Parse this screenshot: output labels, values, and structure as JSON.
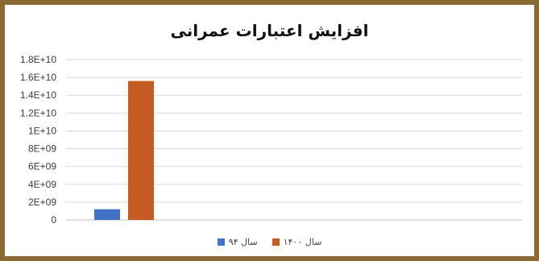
{
  "chart_data": {
    "type": "bar",
    "title": "افزایش اعتبارات عمرانی",
    "xlabel": "",
    "ylabel": "",
    "categories": [
      ""
    ],
    "series": [
      {
        "name": "سال ۹۴",
        "color": "#4472c4",
        "values": [
          1200000000
        ]
      },
      {
        "name": "سال ۱۴۰۰",
        "color": "#c55a22",
        "values": [
          15600000000
        ]
      }
    ],
    "ylim": [
      0,
      18000000000
    ],
    "yticks": [
      {
        "value": 0,
        "label": "0"
      },
      {
        "value": 2000000000,
        "label": "2E+09"
      },
      {
        "value": 4000000000,
        "label": "4E+09"
      },
      {
        "value": 6000000000,
        "label": "6E+09"
      },
      {
        "value": 8000000000,
        "label": "8E+09"
      },
      {
        "value": 10000000000,
        "label": "1E+10"
      },
      {
        "value": 12000000000,
        "label": "1.2E+10"
      },
      {
        "value": 14000000000,
        "label": "1.4E+10"
      },
      {
        "value": 16000000000,
        "label": "1.6E+10"
      },
      {
        "value": 18000000000,
        "label": "1.8E+10"
      }
    ],
    "grid": true,
    "legend_position": "bottom"
  }
}
